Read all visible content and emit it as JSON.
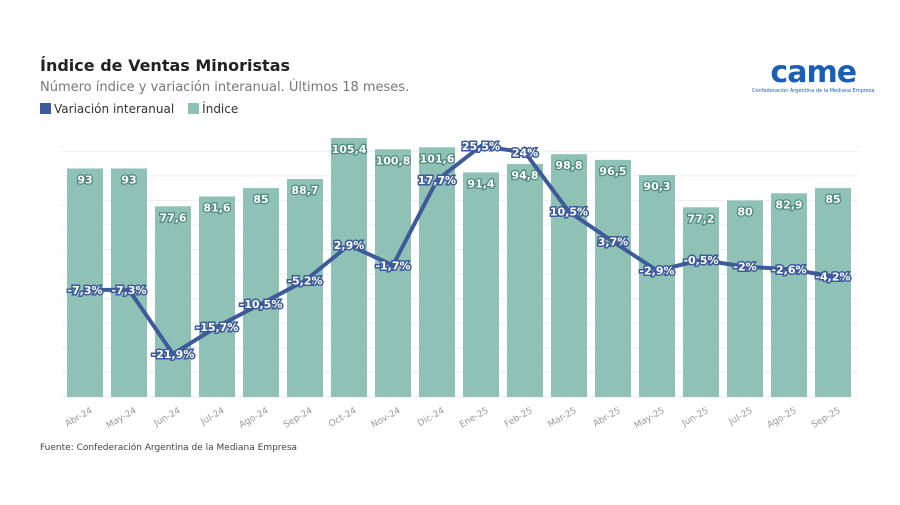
{
  "chart_data": {
    "type": "bar+line",
    "title": "Índice de Ventas Minoristas",
    "subtitle": "Número índice y variación interanual. Últimos 18 meses.",
    "categories": [
      "Abr-24",
      "May-24",
      "Jun-24",
      "Jul-24",
      "Ago-24",
      "Sep-24",
      "Oct-24",
      "Nov-24",
      "Dic-24",
      "Ene-25",
      "Feb-25",
      "Mar-25",
      "Abr-25",
      "May-25",
      "Jun-25",
      "Jul-25",
      "Ago-25",
      "Sep-25"
    ],
    "series": [
      {
        "name": "Índice",
        "type": "bar",
        "color": "#8fc1b5",
        "values": [
          93,
          93,
          77.6,
          81.6,
          85,
          88.7,
          105.4,
          100.8,
          101.6,
          91.4,
          94.8,
          98.8,
          96.5,
          90.3,
          77.2,
          80,
          82.9,
          85
        ],
        "labels": [
          "93",
          "93",
          "77,6",
          "81,6",
          "85",
          "88,7",
          "105,4",
          "100,8",
          "101,6",
          "91,4",
          "94,8",
          "98,8",
          "96,5",
          "90,3",
          "77,2",
          "80",
          "82,9",
          "85"
        ]
      },
      {
        "name": "Variación interanual",
        "type": "line",
        "color": "#3d5a99",
        "values": [
          -7.3,
          -7.3,
          -21.9,
          -15.7,
          -10.5,
          -5.2,
          2.9,
          -1.7,
          17.7,
          25.5,
          24,
          10.5,
          3.7,
          -2.9,
          -0.5,
          -2,
          -2.6,
          -4.2
        ],
        "labels": [
          "-7,3%",
          "-7,3%",
          "-21,9%",
          "-15,7%",
          "-10,5%",
          "-5,2%",
          "2,9%",
          "-1,7%",
          "17,7%",
          "25,5%",
          "24%",
          "10,5%",
          "3,7%",
          "-2,9%",
          "-0,5%",
          "-2%",
          "-2,6%",
          "-4,2%"
        ]
      }
    ],
    "ylim": [
      0,
      105.4
    ],
    "y2lim": [
      -31.7,
      27.3
    ],
    "grid": true,
    "legend_position": "top-left"
  },
  "logo": {
    "text": "came",
    "tagline": "Confederación Argentina de la Mediana Empresa"
  },
  "source": "Fuente: Confederación Argentina de la Mediana Empresa"
}
